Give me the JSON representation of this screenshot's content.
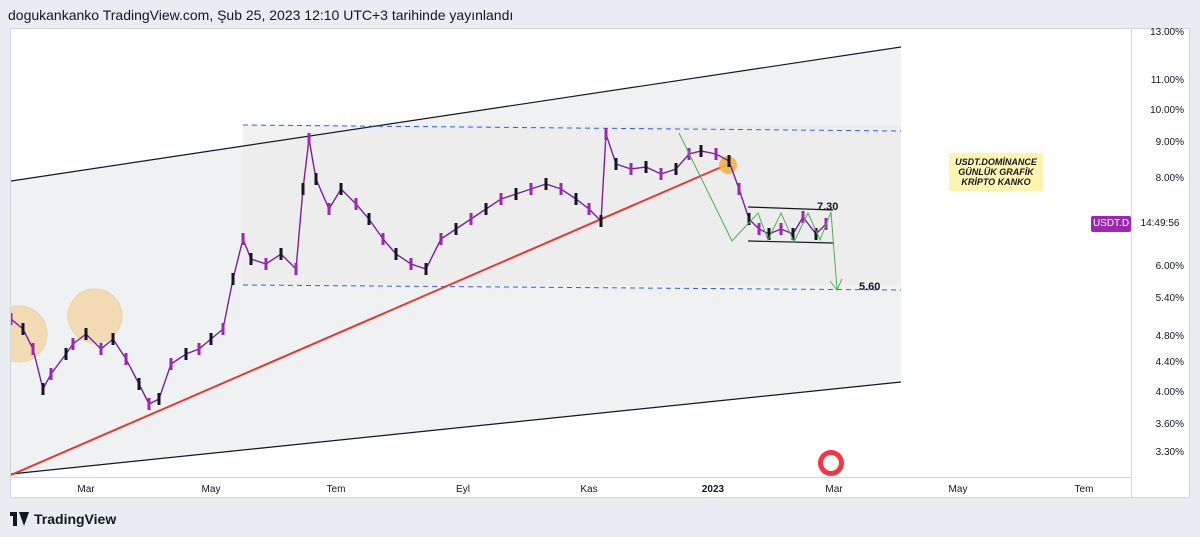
{
  "header": {
    "title": "dogukankanko TradingView.com, Şub 25, 2023 12:10 UTC+3 tarihinde yayınlandı"
  },
  "price_axis": {
    "labels": [
      "13.00%",
      "11.00%",
      "10.00%",
      "9.00%",
      "8.00%",
      "6.00%",
      "5.40%",
      "4.80%",
      "4.40%",
      "4.00%",
      "3.60%",
      "3.30%"
    ]
  },
  "time_axis": {
    "labels": [
      "Mar",
      "May",
      "Tem",
      "Eyl",
      "Kas",
      "2023",
      "Mar",
      "May",
      "Tem"
    ]
  },
  "symbol_tag": {
    "name": "USDT.D",
    "countdown": "14:49:56"
  },
  "annotations": {
    "note_line1": "USDT.DOMİNANCE",
    "note_line2": "GÜNLÜK GRAFİK",
    "note_line3": "KRİPTO KANKO",
    "level_high": "7.30",
    "level_target": "5.60"
  },
  "colors": {
    "candle": "#9c27b0",
    "trend": "#e53935",
    "target_arrow": "#4caf50",
    "dashed": "#2962ff",
    "highlight": "#f5b041"
  },
  "footer": {
    "brand": "TradingView"
  }
}
